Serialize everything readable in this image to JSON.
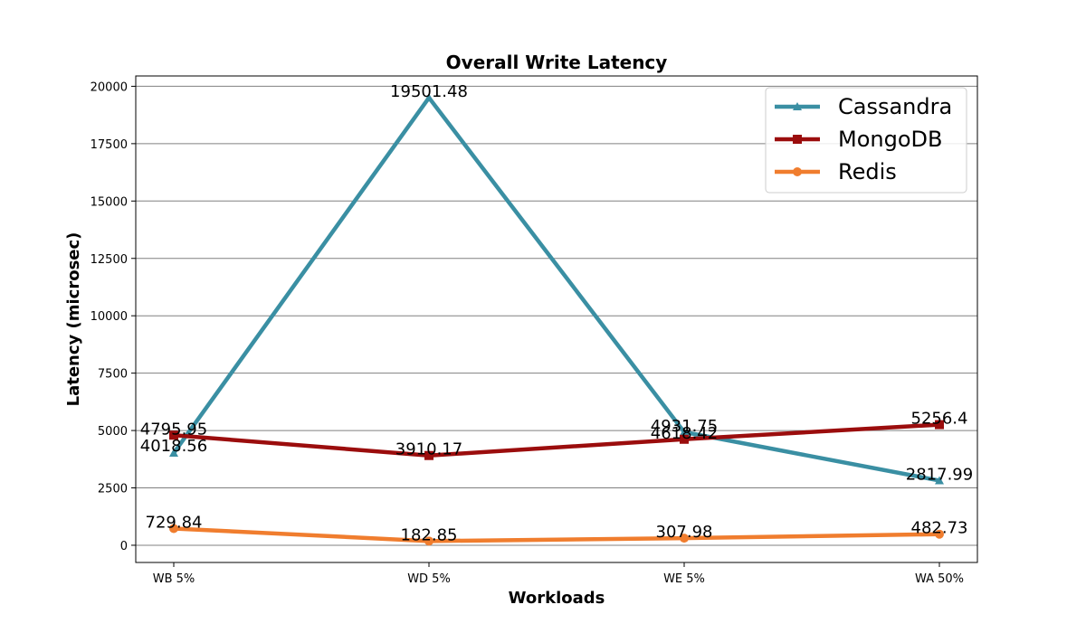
{
  "chart_data": {
    "type": "line",
    "title": "Overall Write Latency",
    "xlabel": "Workloads",
    "ylabel": "Latency (microsec)",
    "categories": [
      "WB 5%",
      "WD 5%",
      "WE 5%",
      "WA 50%"
    ],
    "ylim": [
      -750,
      20450
    ],
    "yticks": [
      0,
      2500,
      5000,
      7500,
      10000,
      12500,
      15000,
      17500,
      20000
    ],
    "grid": "horizontal",
    "legend_position": "top-right",
    "series": [
      {
        "name": "Cassandra",
        "color": "#3a8fa3",
        "marker": "triangle",
        "values": [
          4018.56,
          19501.48,
          4931.75,
          2817.99
        ],
        "labels": [
          "4018.56",
          "19501.48",
          "4931.75",
          "2817.99"
        ]
      },
      {
        "name": "MongoDB",
        "color": "#9b0d0d",
        "marker": "square",
        "values": [
          4795.95,
          3910.17,
          4618.42,
          5256.4
        ],
        "labels": [
          "4795.95",
          "3910.17",
          "4618.42",
          "5256.4"
        ]
      },
      {
        "name": "Redis",
        "color": "#f07d2e",
        "marker": "circle",
        "values": [
          729.84,
          182.85,
          307.98,
          482.73
        ],
        "labels": [
          "729.84",
          "182.85",
          "307.98",
          "482.73"
        ]
      }
    ]
  }
}
